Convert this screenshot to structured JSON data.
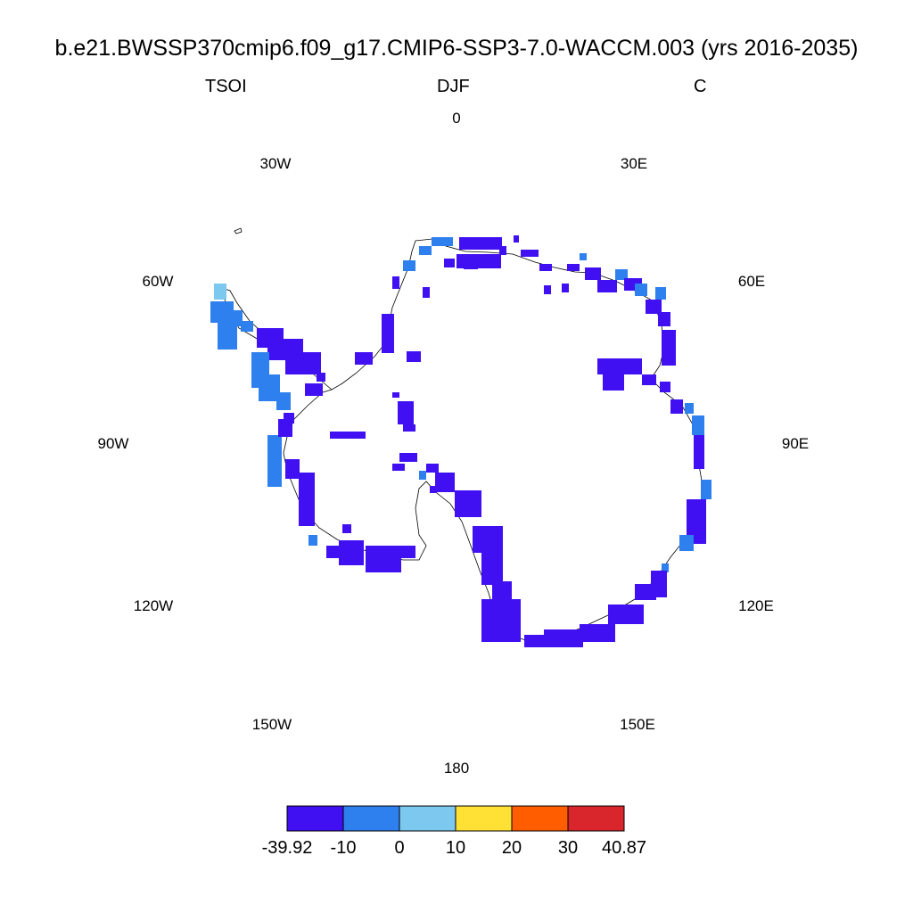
{
  "title": "b.e21.BWSSP370cmip6.f09_g17.CMIP6-SSP3-7.0-WACCM.003 (yrs 2016-2035)",
  "left_string": "TSOI",
  "center_string": "DJF",
  "right_string": "C",
  "longitude_labels": [
    "0",
    "30E",
    "60E",
    "90E",
    "120E",
    "150E",
    "180",
    "150W",
    "120W",
    "90W",
    "60W",
    "30W"
  ],
  "colorbar": {
    "labels": [
      "-39.92",
      "-10",
      "0",
      "10",
      "20",
      "30",
      "40.87"
    ],
    "colors": [
      "#4010f2",
      "#2e80ee",
      "#7dc8ef",
      "#ffe135",
      "#ff5d00",
      "#d9262c"
    ]
  },
  "map_colors": {
    "dominant": "#4010f2",
    "secondary": "#2e80ee",
    "light": "#7dc8ef",
    "coastline": "#000000"
  }
}
